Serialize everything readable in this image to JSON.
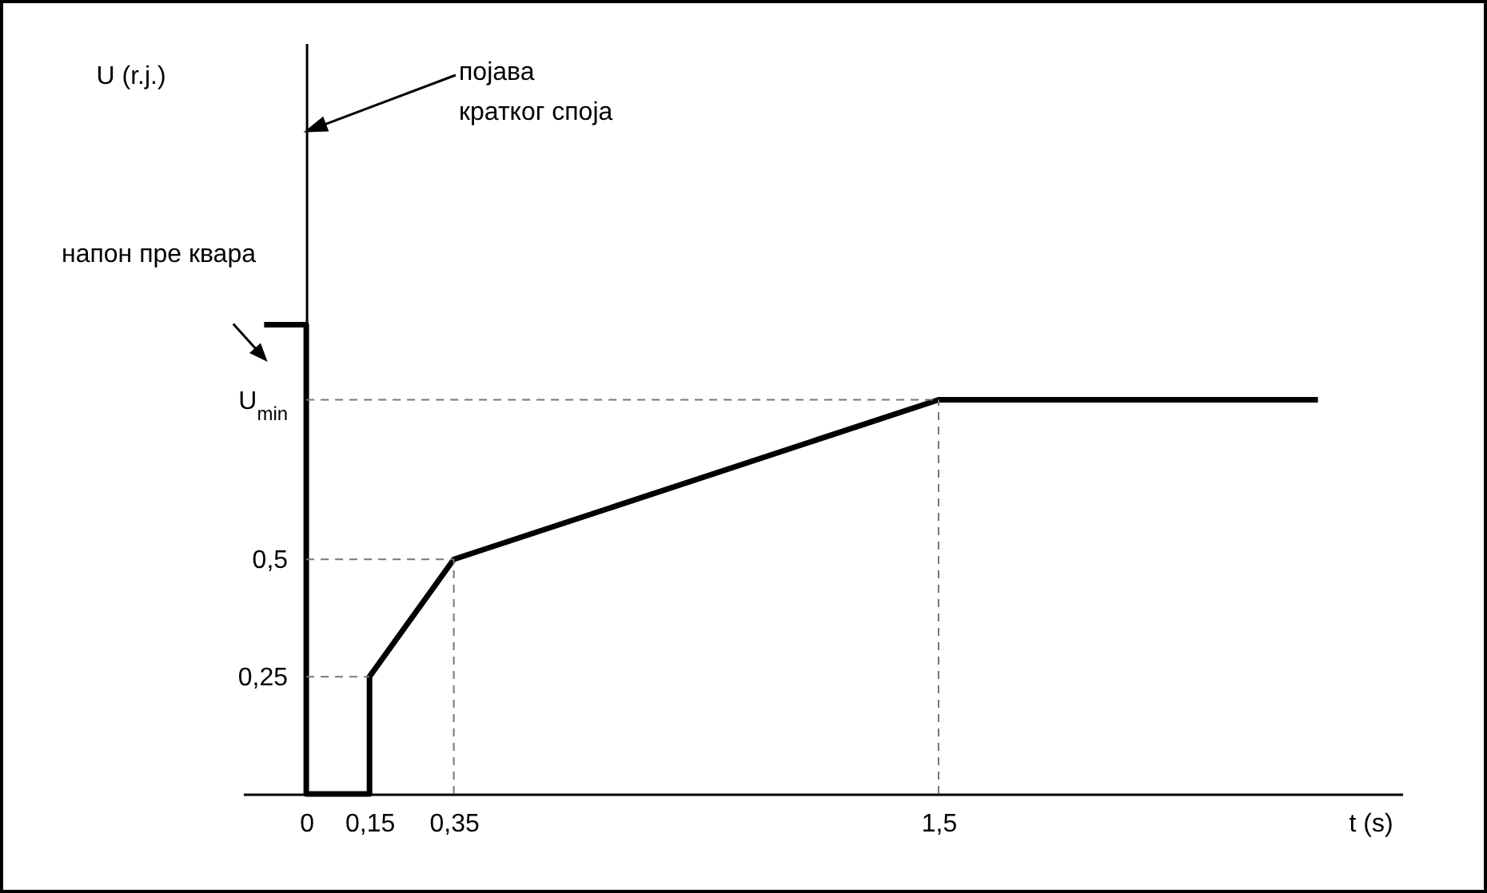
{
  "chart_data": {
    "type": "line",
    "xlabel": "t (s)",
    "ylabel": "U (r.j.)",
    "x": [
      -0.1,
      0,
      0,
      0.15,
      0.15,
      0.35,
      1.5,
      2.4
    ],
    "series": [
      {
        "color": "#000000",
        "values": [
          1.0,
          1.0,
          0,
          0,
          0.25,
          0.5,
          0.84,
          0.84
        ]
      },
      {
        "color": "#777777",
        "line_style": "dashed",
        "x": [
          0,
          0.15
        ],
        "values": [
          0.25,
          0.25
        ]
      },
      {
        "color": "#777777",
        "line_style": "dashed",
        "x": [
          0,
          0.35
        ],
        "values": [
          0.5,
          0.5
        ]
      },
      {
        "color": "#777777",
        "line_style": "dashed",
        "x": [
          0.35,
          0.35
        ],
        "values": [
          0,
          0.5
        ]
      },
      {
        "color": "#777777",
        "line_style": "dashed",
        "x": [
          0,
          1.5
        ],
        "values": [
          0.84,
          0.84
        ]
      },
      {
        "color": "#777777",
        "line_style": "dashed",
        "x": [
          1.5,
          1.5
        ],
        "values": [
          0,
          0.84
        ]
      }
    ],
    "xlim": [
      -0.15,
      2.6
    ],
    "ylim": [
      0,
      1.6
    ],
    "xticks": [
      0,
      {
        "value": 0.15,
        "label": "0,15"
      },
      {
        "value": 0.35,
        "label": "0,35"
      },
      {
        "value": 1.5,
        "label": "1,5"
      }
    ],
    "yticks": [
      {
        "value": 0.25,
        "label": "0,25"
      },
      {
        "value": 0.5,
        "label": "0,5"
      },
      {
        "value": 0.84,
        "label": "U$_{min}$"
      }
    ],
    "annotations": [
      "напон пре квара",
      "појава кратког споја"
    ],
    "grid": false
  }
}
